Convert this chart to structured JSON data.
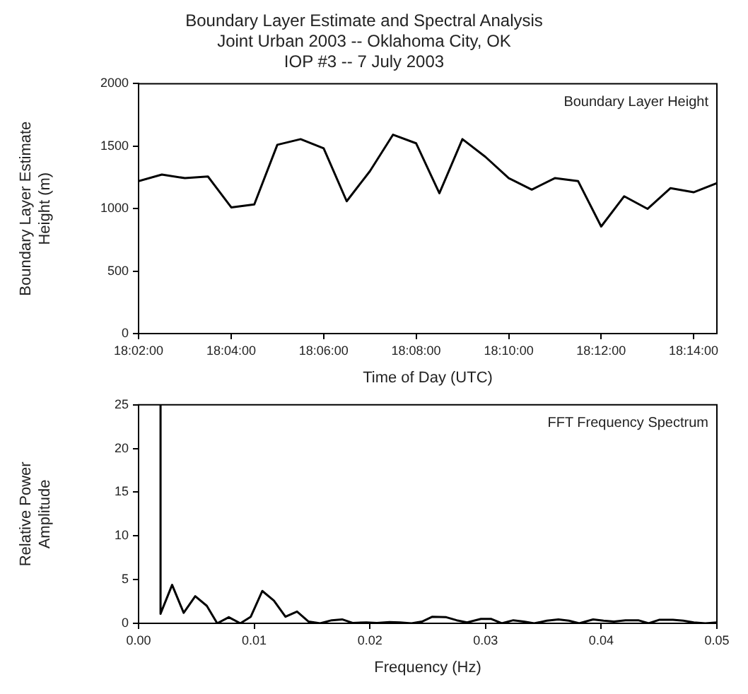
{
  "chart_data": [
    {
      "type": "line",
      "title": "Boundary Layer Estimate and Spectral Analysis",
      "subtitle": "Joint Urban 2003 -- Oklahoma City, OK\nIOP #3 -- 7 July 2003",
      "xlabel": "Time of Day (UTC)",
      "ylabel": "Boundary Layer Estimate\nHeight (m)",
      "annotations": [
        "Boundary Layer Height"
      ],
      "x": [
        18.0333,
        18.0417,
        18.05,
        18.0583,
        18.0667,
        18.075,
        18.0833,
        18.0917,
        18.1,
        18.1083,
        18.1167,
        18.125,
        18.1333,
        18.1417,
        18.15,
        18.1583,
        18.1667,
        18.175,
        18.1833,
        18.1917,
        18.2,
        18.2083,
        18.2167,
        18.225,
        18.2333,
        18.2417
      ],
      "series": [
        {
          "color": "#000000",
          "values": [
            1220,
            1273,
            1244,
            1257,
            1010,
            1034,
            1511,
            1556,
            1483,
            1059,
            1301,
            1592,
            1523,
            1123,
            1556,
            1414,
            1244,
            1152,
            1244,
            1220,
            857,
            1099,
            998,
            1164,
            1131,
            1204
          ]
        }
      ],
      "xlim": [
        18.0333,
        18.2417
      ],
      "xticks": [
        {
          "value": 18.0333,
          "label": "18:02:00"
        },
        {
          "value": 18.0667,
          "label": "18:04:00"
        },
        {
          "value": 18.1,
          "label": "18:06:00"
        },
        {
          "value": 18.1333,
          "label": "18:08:00"
        },
        {
          "value": 18.1667,
          "label": "18:10:00"
        },
        {
          "value": 18.2,
          "label": "18:12:00"
        },
        {
          "value": 18.2333,
          "label": "18:14:00"
        }
      ],
      "ylim": [
        0,
        2000
      ],
      "yticks": [
        0,
        500,
        1000,
        1500,
        2000
      ],
      "grid": false,
      "marker": "none",
      "line_style": "solid"
    },
    {
      "type": "line",
      "xlabel": "Frequency (Hz)",
      "ylabel": "Relative Power\nAmplitude",
      "annotations": [
        "FFT Frequency Spectrum"
      ],
      "x": [
        0.0019,
        0.0019,
        0.0029,
        0.0039,
        0.0049,
        0.0059,
        0.0068,
        0.0078,
        0.0088,
        0.0097,
        0.0107,
        0.0117,
        0.0127,
        0.0137,
        0.0147,
        0.0157,
        0.0167,
        0.0176,
        0.0185,
        0.0197,
        0.0206,
        0.0217,
        0.0226,
        0.0236,
        0.0245,
        0.0254,
        0.0266,
        0.0275,
        0.0284,
        0.0296,
        0.0305,
        0.0314,
        0.0324,
        0.0333,
        0.0342,
        0.0353,
        0.0363,
        0.0372,
        0.0381,
        0.0393,
        0.0402,
        0.0411,
        0.0421,
        0.0432,
        0.0441,
        0.045,
        0.0462,
        0.0471,
        0.048,
        0.049,
        0.05
      ],
      "series": [
        {
          "color": "#000000",
          "values": [
            25,
            1.1,
            4.4,
            1.2,
            3.1,
            2.0,
            0,
            0.7,
            0,
            0.75,
            3.7,
            2.6,
            0.75,
            1.35,
            0.2,
            0,
            0.35,
            0.45,
            0.05,
            0.1,
            0.05,
            0.15,
            0.1,
            0,
            0.2,
            0.75,
            0.7,
            0.35,
            0.1,
            0.5,
            0.5,
            0,
            0.35,
            0.2,
            0,
            0.3,
            0.45,
            0.3,
            0,
            0.45,
            0.3,
            0.2,
            0.35,
            0.35,
            0,
            0.4,
            0.4,
            0.3,
            0.1,
            0,
            0.1
          ]
        }
      ],
      "xlim": [
        0,
        0.05
      ],
      "xticks": [
        {
          "value": 0,
          "label": "0.00"
        },
        {
          "value": 0.01,
          "label": "0.01"
        },
        {
          "value": 0.02,
          "label": "0.02"
        },
        {
          "value": 0.03,
          "label": "0.03"
        },
        {
          "value": 0.04,
          "label": "0.04"
        },
        {
          "value": 0.05,
          "label": "0.05"
        }
      ],
      "ylim": [
        0,
        25
      ],
      "yticks": [
        0,
        5,
        10,
        15,
        20,
        25
      ],
      "grid": false,
      "marker": "none",
      "line_style": "solid"
    }
  ]
}
